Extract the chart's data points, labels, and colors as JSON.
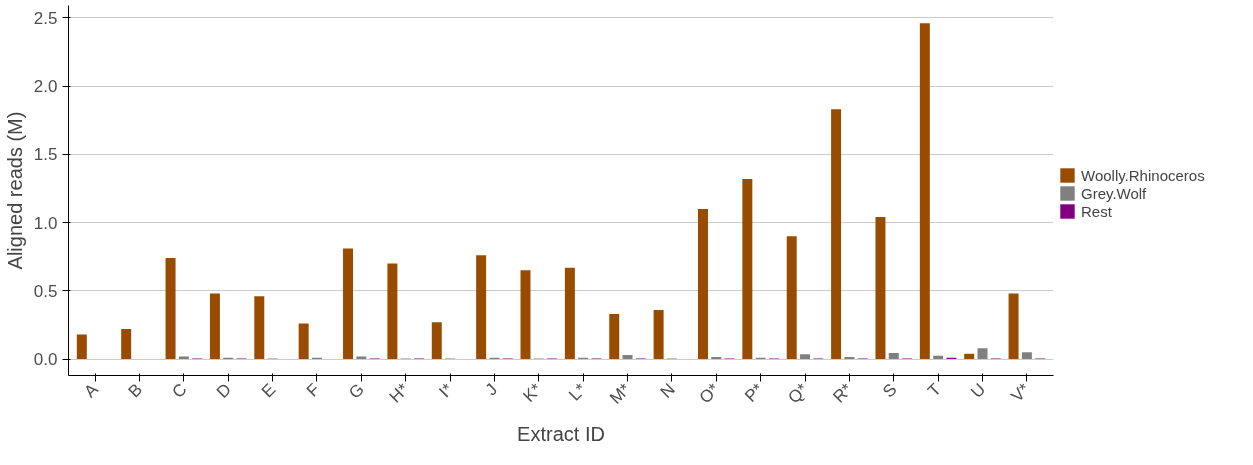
{
  "chart_data": {
    "type": "bar",
    "xlabel": "Extract ID",
    "ylabel": "Aligned reads (M)",
    "categories": [
      "A",
      "B",
      "C",
      "D",
      "E",
      "F",
      "G",
      "H*",
      "I*",
      "J",
      "K*",
      "L*",
      "M*",
      "N",
      "O*",
      "P*",
      "Q*",
      "R*",
      "S",
      "T",
      "U",
      "V*"
    ],
    "series": [
      {
        "name": "Woolly.Rhinoceros",
        "color": "#994c00",
        "values": [
          0.18,
          0.22,
          0.74,
          0.48,
          0.46,
          0.26,
          0.81,
          0.7,
          0.27,
          0.76,
          0.65,
          0.67,
          0.33,
          0.36,
          1.1,
          1.32,
          0.9,
          1.83,
          1.04,
          2.46,
          0.04,
          0.48
        ]
      },
      {
        "name": "Grey.Wolf",
        "color": "#808080",
        "values": [
          0,
          0,
          0.02,
          0.01,
          0.005,
          0.01,
          0.02,
          0.005,
          0.005,
          0.01,
          0.005,
          0.01,
          0.03,
          0.005,
          0.015,
          0.01,
          0.035,
          0.015,
          0.045,
          0.025,
          0.08,
          0.05
        ]
      },
      {
        "name": "Rest",
        "color": "#800080",
        "values": [
          0,
          0,
          0.005,
          0.005,
          0,
          0,
          0.005,
          0.005,
          0,
          0.005,
          0.005,
          0.005,
          0.005,
          0,
          0.005,
          0.005,
          0.005,
          0.005,
          0.005,
          0.01,
          0.005,
          0.005
        ]
      }
    ],
    "ylim": [
      -0.12,
      2.59
    ],
    "yticks": [
      {
        "value": 0,
        "label": "0.0"
      },
      {
        "value": 0.5,
        "label": "0.5"
      },
      {
        "value": 1,
        "label": "1.0"
      },
      {
        "value": 1.5,
        "label": "1.5"
      },
      {
        "value": 2,
        "label": "2.0"
      },
      {
        "value": 2.5,
        "label": "2.5"
      }
    ],
    "grid": "y",
    "legend": "right"
  }
}
